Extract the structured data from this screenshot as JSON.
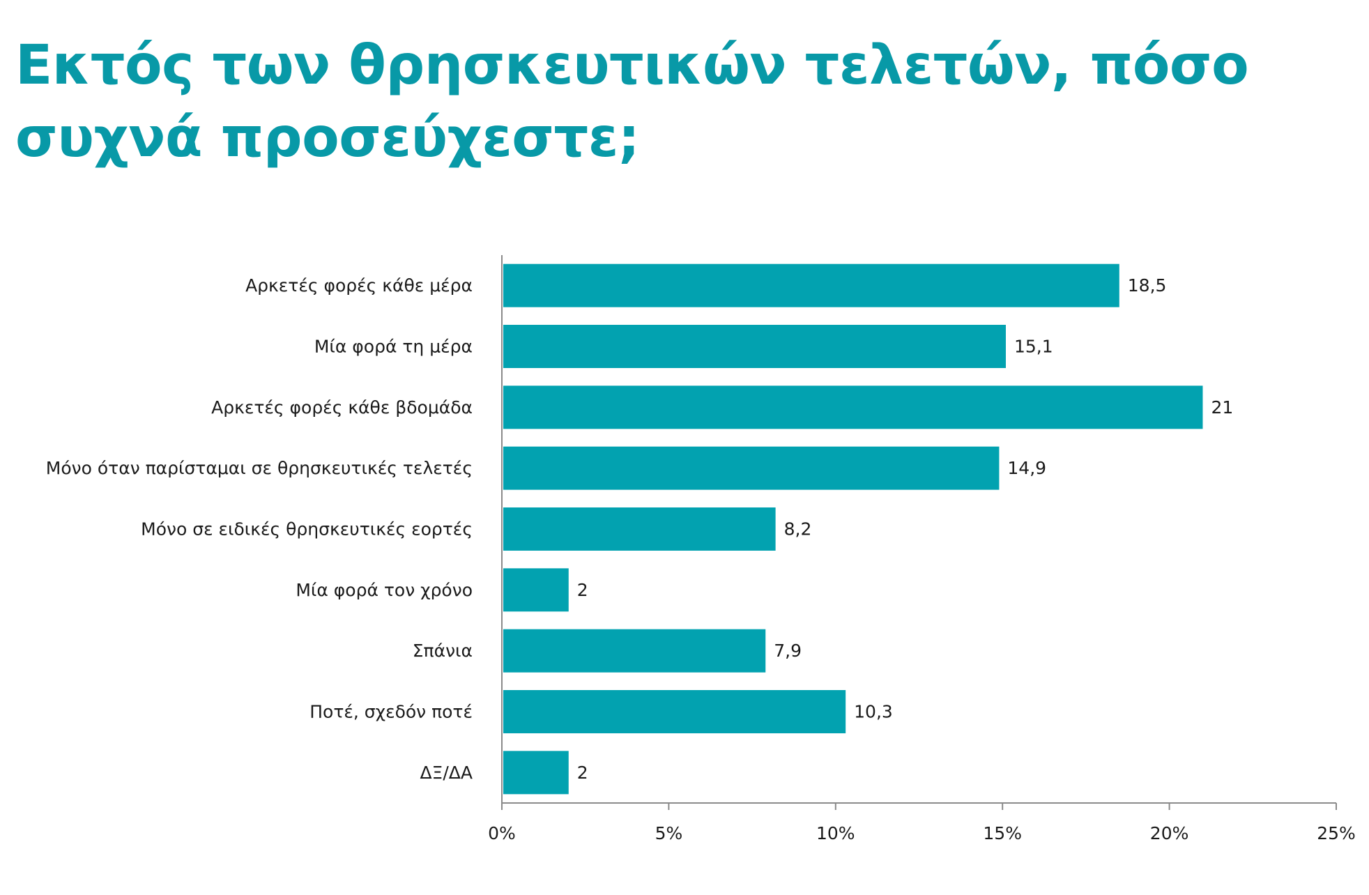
{
  "chart_data": {
    "type": "bar",
    "orientation": "horizontal",
    "title": "Εκτός των θρησκευτικών τελετών, πόσο συχνά προσεύχεστε;",
    "categories": [
      "Αρκετές φορές κάθε μέρα",
      "Μία φορά τη μέρα",
      "Αρκετές φορές κάθε βδομάδα",
      "Μόνο όταν παρίσταμαι σε θρησκευτικές τελετές",
      "Μόνο σε ειδικές θρησκευτικές εορτές",
      "Μία φορά τον χρόνο",
      "Σπάνια",
      "Ποτέ, σχεδόν ποτέ",
      "ΔΞ/ΔΑ"
    ],
    "values": [
      18.5,
      15.1,
      21,
      14.9,
      8.2,
      2,
      7.9,
      10.3,
      2
    ],
    "value_labels": [
      "18,5",
      "15,1",
      "21",
      "14,9",
      "8,2",
      "2",
      "7,9",
      "10,3",
      "2"
    ],
    "xlim": [
      0,
      25
    ],
    "xticks": [
      0,
      5,
      10,
      15,
      20,
      25
    ],
    "xtick_labels": [
      "0%",
      "5%",
      "10%",
      "15%",
      "20%",
      "25%"
    ],
    "xlabel": "",
    "ylabel": "",
    "grid": false,
    "legend": "none",
    "bar_color": "#02a2b0",
    "title_color": "#0899a7",
    "text_color": "#1a1a1a"
  }
}
